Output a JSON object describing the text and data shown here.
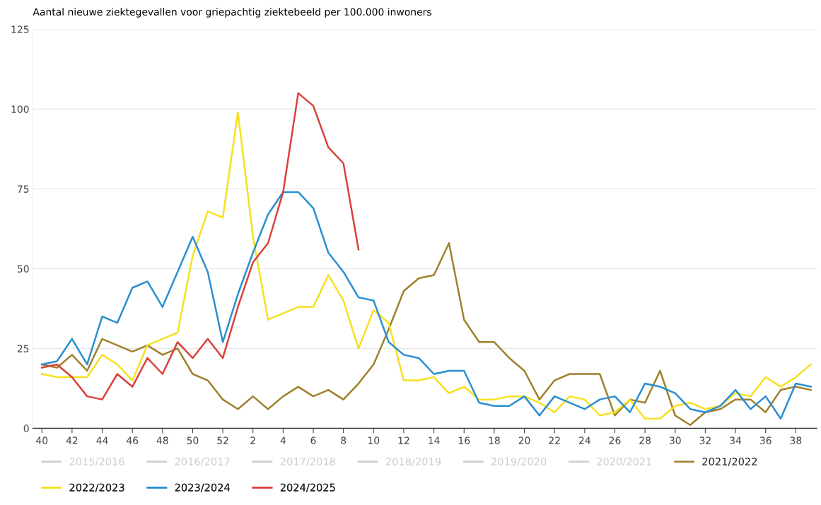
{
  "chart_data": {
    "type": "line",
    "title": "Aantal nieuwe ziektegevallen voor griepachtig ziektebeeld per 100.000 inwoners",
    "categories": [
      "40",
      null,
      "42",
      null,
      "44",
      null,
      "46",
      null,
      "48",
      null,
      "50",
      null,
      "52",
      null,
      "2",
      null,
      "4",
      null,
      "6",
      null,
      "8",
      null,
      "10",
      null,
      "12",
      null,
      "14",
      null,
      "16",
      null,
      "18",
      null,
      "20",
      null,
      "22",
      null,
      "24",
      null,
      "26",
      null,
      "28",
      null,
      "30",
      null,
      "32",
      null,
      "34",
      null,
      "36",
      null,
      "38",
      null
    ],
    "series": [
      {
        "name": "2015/2016",
        "color": "#cccccc",
        "values": [
          null,
          null,
          null,
          null,
          null,
          null,
          null,
          null,
          null,
          null,
          null,
          null,
          null,
          null,
          null,
          null,
          null,
          null,
          null,
          null,
          null,
          null,
          null,
          null,
          null,
          null,
          null,
          null,
          null,
          null,
          null,
          null,
          null,
          null,
          null,
          null,
          null,
          null,
          null,
          null,
          null,
          null,
          null,
          null,
          null,
          null,
          null,
          null,
          null,
          null,
          null,
          null
        ]
      },
      {
        "name": "2016/2017",
        "color": "#cccccc",
        "values": [
          null,
          null,
          null,
          null,
          null,
          null,
          null,
          null,
          null,
          null,
          null,
          null,
          null,
          null,
          null,
          null,
          null,
          null,
          null,
          null,
          null,
          null,
          null,
          null,
          null,
          null,
          null,
          null,
          null,
          null,
          null,
          null,
          null,
          null,
          null,
          null,
          null,
          null,
          null,
          null,
          null,
          null,
          null,
          null,
          null,
          null,
          null,
          null,
          null,
          null,
          null,
          null
        ]
      },
      {
        "name": "2017/2018",
        "color": "#cccccc",
        "values": [
          null,
          null,
          null,
          null,
          null,
          null,
          null,
          null,
          null,
          null,
          null,
          null,
          null,
          null,
          null,
          null,
          null,
          null,
          null,
          null,
          null,
          null,
          null,
          null,
          null,
          null,
          null,
          null,
          null,
          null,
          null,
          null,
          null,
          null,
          null,
          null,
          null,
          null,
          null,
          null,
          null,
          null,
          null,
          null,
          null,
          null,
          null,
          null,
          null,
          null,
          null,
          null
        ]
      },
      {
        "name": "2018/2019",
        "color": "#cccccc",
        "values": [
          null,
          null,
          null,
          null,
          null,
          null,
          null,
          null,
          null,
          null,
          null,
          null,
          null,
          null,
          null,
          null,
          null,
          null,
          null,
          null,
          null,
          null,
          null,
          null,
          null,
          null,
          null,
          null,
          null,
          null,
          null,
          null,
          null,
          null,
          null,
          null,
          null,
          null,
          null,
          null,
          null,
          null,
          null,
          null,
          null,
          null,
          null,
          null,
          null,
          null,
          null,
          null
        ]
      },
      {
        "name": "2019/2020",
        "color": "#cccccc",
        "values": [
          null,
          null,
          null,
          null,
          null,
          null,
          null,
          null,
          null,
          null,
          null,
          null,
          null,
          null,
          null,
          null,
          null,
          null,
          null,
          null,
          null,
          null,
          null,
          null,
          null,
          null,
          null,
          null,
          null,
          null,
          null,
          null,
          null,
          null,
          null,
          null,
          null,
          null,
          null,
          null,
          null,
          null,
          null,
          null,
          null,
          null,
          null,
          null,
          null,
          null,
          null,
          null
        ]
      },
      {
        "name": "2020/2021",
        "color": "#cccccc",
        "values": [
          null,
          null,
          null,
          null,
          null,
          null,
          null,
          null,
          null,
          null,
          null,
          null,
          null,
          null,
          null,
          null,
          null,
          null,
          null,
          null,
          null,
          null,
          null,
          null,
          null,
          null,
          null,
          null,
          null,
          null,
          null,
          null,
          null,
          null,
          null,
          null,
          null,
          null,
          null,
          null,
          null,
          null,
          null,
          null,
          null,
          null,
          null,
          null,
          null,
          null,
          null,
          null
        ]
      },
      {
        "name": "2021/2022",
        "color": "#a0802c",
        "values": [
          20,
          19,
          23,
          18,
          28,
          26,
          24,
          26,
          23,
          25,
          17,
          15,
          9,
          6,
          10,
          6,
          10,
          13,
          10,
          12,
          9,
          14,
          20,
          31,
          43,
          47,
          48,
          58,
          34,
          27,
          27,
          22,
          18,
          9,
          15,
          17,
          17,
          17,
          4,
          9,
          8,
          18,
          4,
          1,
          5,
          6,
          9,
          9,
          5,
          12,
          13,
          12
        ]
      },
      {
        "name": "2022/2023",
        "color": "#f5e11e",
        "values": [
          17,
          16,
          16,
          16,
          23,
          20,
          15,
          26,
          28,
          30,
          54,
          68,
          66,
          99,
          60,
          34,
          36,
          38,
          38,
          48,
          40,
          25,
          37,
          33,
          15,
          15,
          16,
          11,
          13,
          9,
          9,
          10,
          10,
          8,
          5,
          10,
          9,
          4,
          5,
          9,
          3,
          3,
          7,
          8,
          6,
          7,
          11,
          10,
          16,
          13,
          16,
          20
        ]
      },
      {
        "name": "2023/2024",
        "color": "#2a8fd0",
        "values": [
          20,
          21,
          28,
          20,
          35,
          33,
          44,
          46,
          38,
          49,
          60,
          49,
          27,
          42,
          55,
          67,
          74,
          74,
          69,
          55,
          49,
          41,
          40,
          27,
          23,
          22,
          17,
          18,
          18,
          8,
          7,
          7,
          10,
          4,
          10,
          8,
          6,
          9,
          10,
          5,
          14,
          13,
          11,
          6,
          5,
          7,
          12,
          6,
          10,
          3,
          14,
          13
        ]
      },
      {
        "name": "2024/2025",
        "color": "#d9413b",
        "values": [
          19,
          20,
          16,
          10,
          9,
          17,
          13,
          22,
          17,
          27,
          22,
          28,
          22,
          38,
          52,
          58,
          74,
          105,
          101,
          88,
          83,
          56,
          null,
          null,
          null,
          null,
          null,
          null,
          null,
          null,
          null,
          null,
          null,
          null,
          null,
          null,
          null,
          null,
          null,
          null,
          null,
          null,
          null,
          null,
          null,
          null,
          null,
          null,
          null,
          null,
          null,
          null
        ]
      }
    ],
    "ylim": [
      0,
      125
    ],
    "yticks": [
      0,
      25,
      50,
      75,
      100,
      125
    ],
    "grid": "y",
    "legend": "bottom",
    "marker": "none",
    "line_style": "solid"
  }
}
